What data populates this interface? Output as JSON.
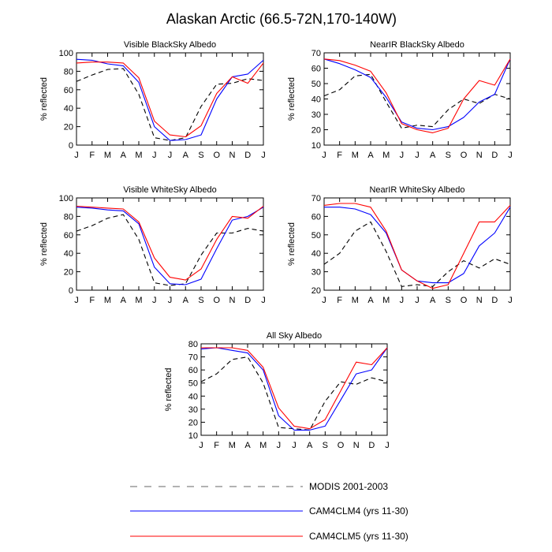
{
  "title": "Alaskan Arctic (66.5-72N,170-140W)",
  "legend": [
    {
      "label": "MODIS 2001-2003",
      "color": "#000000",
      "dash": true
    },
    {
      "label": "CAM4CLM4 (yrs 11-30)",
      "color": "#0000ff",
      "dash": false
    },
    {
      "label": "CAM4CLM5 (yrs 11-30)",
      "color": "#ff0000",
      "dash": false
    }
  ],
  "chart_data": [
    {
      "type": "line",
      "title": "Visible BlackSky Albedo",
      "ylabel": "% reflected",
      "categories": [
        "J",
        "F",
        "M",
        "A",
        "M",
        "J",
        "J",
        "A",
        "S",
        "O",
        "N",
        "D",
        "J"
      ],
      "ylim": [
        0,
        100
      ],
      "yticks": [
        0,
        20,
        40,
        60,
        80,
        100
      ],
      "series": [
        {
          "name": "MODIS 2001-2003",
          "values": [
            69,
            76,
            82,
            83,
            55,
            8,
            5,
            8,
            42,
            66,
            67,
            72,
            70
          ]
        },
        {
          "name": "CAM4CLM4 (yrs 11-30)",
          "values": [
            93,
            92,
            88,
            86,
            68,
            20,
            5,
            6,
            11,
            50,
            74,
            77,
            92
          ]
        },
        {
          "name": "CAM4CLM5 (yrs 11-30)",
          "values": [
            89,
            90,
            90,
            89,
            73,
            26,
            11,
            9,
            21,
            56,
            74,
            67,
            89
          ]
        }
      ]
    },
    {
      "type": "line",
      "title": "NearIR BlackSky Albedo",
      "ylabel": "% reflected",
      "categories": [
        "J",
        "F",
        "M",
        "A",
        "M",
        "J",
        "J",
        "A",
        "S",
        "O",
        "N",
        "D",
        "J"
      ],
      "ylim": [
        10,
        70
      ],
      "yticks": [
        10,
        20,
        30,
        40,
        50,
        60,
        70
      ],
      "series": [
        {
          "name": "MODIS 2001-2003",
          "values": [
            42,
            46,
            55,
            56,
            38,
            21,
            23,
            22,
            33,
            40,
            37,
            43,
            40
          ]
        },
        {
          "name": "CAM4CLM4 (yrs 11-30)",
          "values": [
            66,
            63,
            59,
            54,
            41,
            25,
            21,
            20,
            22,
            28,
            38,
            43,
            66
          ]
        },
        {
          "name": "CAM4CLM5 (yrs 11-30)",
          "values": [
            66,
            65,
            62,
            58,
            44,
            24,
            20,
            18,
            21,
            40,
            52,
            49,
            66
          ]
        }
      ]
    },
    {
      "type": "line",
      "title": "Visible WhiteSky Albedo",
      "ylabel": "% reflected",
      "categories": [
        "J",
        "F",
        "M",
        "A",
        "M",
        "J",
        "J",
        "A",
        "S",
        "O",
        "N",
        "D",
        "J"
      ],
      "ylim": [
        0,
        100
      ],
      "yticks": [
        0,
        20,
        40,
        60,
        80,
        100
      ],
      "series": [
        {
          "name": "MODIS 2001-2003",
          "values": [
            64,
            70,
            78,
            82,
            55,
            8,
            5,
            7,
            38,
            62,
            62,
            67,
            64
          ]
        },
        {
          "name": "CAM4CLM4 (yrs 11-30)",
          "values": [
            90,
            89,
            87,
            86,
            72,
            25,
            7,
            6,
            12,
            45,
            76,
            80,
            90
          ]
        },
        {
          "name": "CAM4CLM5 (yrs 11-30)",
          "values": [
            91,
            90,
            89,
            88,
            74,
            35,
            14,
            11,
            23,
            55,
            80,
            78,
            91
          ]
        }
      ]
    },
    {
      "type": "line",
      "title": "NearIR WhiteSky Albedo",
      "ylabel": "% reflected",
      "categories": [
        "J",
        "F",
        "M",
        "A",
        "M",
        "J",
        "J",
        "A",
        "S",
        "O",
        "N",
        "D",
        "J"
      ],
      "ylim": [
        20,
        70
      ],
      "yticks": [
        20,
        30,
        40,
        50,
        60,
        70
      ],
      "series": [
        {
          "name": "MODIS 2001-2003",
          "values": [
            34,
            40,
            52,
            57,
            41,
            22,
            23,
            22,
            30,
            36,
            32,
            37,
            34
          ]
        },
        {
          "name": "CAM4CLM4 (yrs 11-30)",
          "values": [
            65,
            65,
            64,
            61,
            51,
            31,
            25,
            24,
            24,
            29,
            44,
            51,
            65
          ]
        },
        {
          "name": "CAM4CLM5 (yrs 11-30)",
          "values": [
            66,
            67,
            67,
            65,
            52,
            31,
            25,
            21,
            23,
            40,
            57,
            57,
            66
          ]
        }
      ]
    },
    {
      "type": "line",
      "title": "All Sky Albedo",
      "ylabel": "% reflected",
      "categories": [
        "J",
        "F",
        "M",
        "A",
        "M",
        "J",
        "J",
        "A",
        "S",
        "O",
        "N",
        "D",
        "J"
      ],
      "ylim": [
        10,
        80
      ],
      "yticks": [
        10,
        20,
        30,
        40,
        50,
        60,
        70,
        80
      ],
      "series": [
        {
          "name": "MODIS 2001-2003",
          "values": [
            51,
            57,
            68,
            70,
            50,
            16,
            15,
            14,
            36,
            51,
            49,
            54,
            51
          ]
        },
        {
          "name": "CAM4CLM4 (yrs 11-30)",
          "values": [
            76,
            77,
            75,
            73,
            60,
            25,
            14,
            14,
            17,
            37,
            57,
            60,
            77
          ]
        },
        {
          "name": "CAM4CLM5 (yrs 11-30)",
          "values": [
            77,
            77,
            77,
            75,
            62,
            31,
            17,
            15,
            22,
            44,
            66,
            64,
            77
          ]
        }
      ]
    }
  ]
}
